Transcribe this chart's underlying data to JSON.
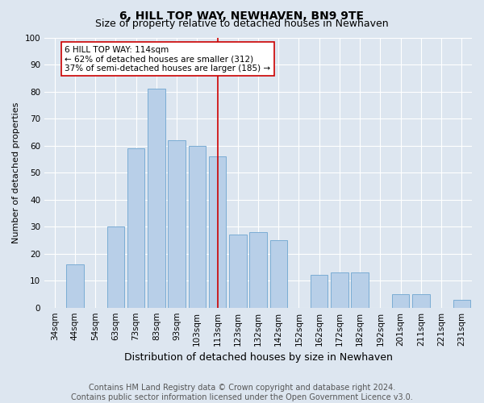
{
  "title": "6, HILL TOP WAY, NEWHAVEN, BN9 9TE",
  "subtitle": "Size of property relative to detached houses in Newhaven",
  "xlabel": "Distribution of detached houses by size in Newhaven",
  "ylabel": "Number of detached properties",
  "footer_line1": "Contains HM Land Registry data © Crown copyright and database right 2024.",
  "footer_line2": "Contains public sector information licensed under the Open Government Licence v3.0.",
  "categories": [
    "34sqm",
    "44sqm",
    "54sqm",
    "63sqm",
    "73sqm",
    "83sqm",
    "93sqm",
    "103sqm",
    "113sqm",
    "123sqm",
    "132sqm",
    "142sqm",
    "152sqm",
    "162sqm",
    "172sqm",
    "182sqm",
    "192sqm",
    "201sqm",
    "211sqm",
    "221sqm",
    "231sqm"
  ],
  "values": [
    0,
    16,
    0,
    30,
    59,
    81,
    62,
    60,
    56,
    27,
    28,
    25,
    0,
    12,
    13,
    13,
    0,
    5,
    5,
    0,
    3
  ],
  "bar_color": "#b8cfe8",
  "bar_edge_color": "#7aacd4",
  "property_line_x": 8,
  "property_line_color": "#cc0000",
  "annotation_text": "6 HILL TOP WAY: 114sqm\n← 62% of detached houses are smaller (312)\n37% of semi-detached houses are larger (185) →",
  "annotation_box_color": "#ffffff",
  "annotation_box_edge_color": "#cc0000",
  "ylim": [
    0,
    100
  ],
  "yticks": [
    0,
    10,
    20,
    30,
    40,
    50,
    60,
    70,
    80,
    90,
    100
  ],
  "background_color": "#dde6f0",
  "plot_background_color": "#dde6f0",
  "title_fontsize": 10,
  "subtitle_fontsize": 9,
  "xlabel_fontsize": 9,
  "ylabel_fontsize": 8,
  "tick_fontsize": 7.5,
  "annotation_fontsize": 7.5,
  "footer_fontsize": 7
}
